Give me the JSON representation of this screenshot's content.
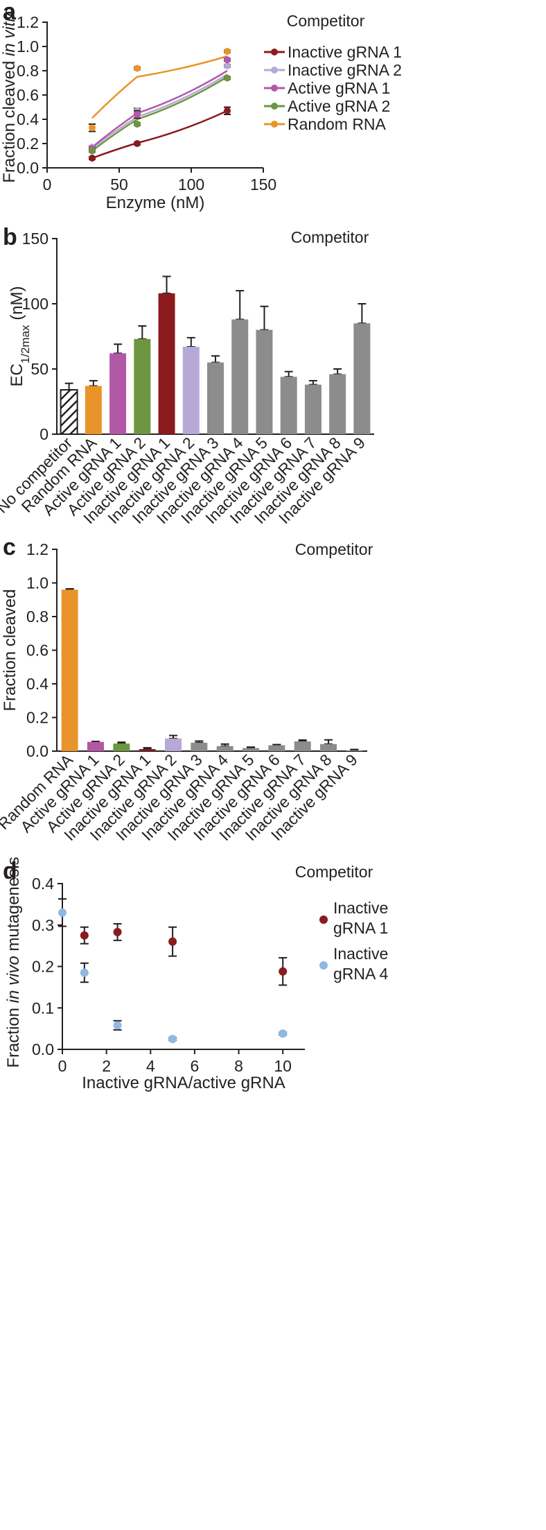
{
  "chart_data": [
    {
      "panel": "a",
      "type": "scatter",
      "title": "Competitor",
      "xlabel": "Enzyme (nM)",
      "ylabel": "Fraction cleaved in vitro",
      "ylabel_plain": "Fraction cleaved ",
      "ylabel_italic": "in vitro",
      "xlim": [
        0,
        150
      ],
      "ylim": [
        0,
        1.2
      ],
      "xticks": [
        "0",
        "50",
        "100",
        "150"
      ],
      "yticks": [
        "0.0",
        "0.2",
        "0.4",
        "0.6",
        "0.8",
        "1.0",
        "1.2"
      ],
      "x": [
        31.25,
        62.5,
        125
      ],
      "series": [
        {
          "name": "Inactive gRNA 1",
          "color": "#8b1a1e",
          "values": [
            0.08,
            0.2,
            0.47
          ],
          "errors": [
            0.01,
            0.01,
            0.03
          ],
          "fit": [
            0.08,
            0.205,
            0.47
          ]
        },
        {
          "name": "Inactive gRNA 2",
          "color": "#b7a9d6",
          "values": [
            0.17,
            0.47,
            0.84
          ],
          "errors": [
            0.01,
            0.02,
            0.01
          ],
          "fit": [
            0.16,
            0.42,
            0.77
          ]
        },
        {
          "name": "Active gRNA 1",
          "color": "#b259a6",
          "values": [
            0.16,
            0.44,
            0.89
          ],
          "errors": [
            0.01,
            0.03,
            0.01
          ],
          "fit": [
            0.17,
            0.45,
            0.8
          ]
        },
        {
          "name": "Active gRNA 2",
          "color": "#6d9640",
          "values": [
            0.14,
            0.36,
            0.74
          ],
          "errors": [
            0.01,
            0.01,
            0.01
          ],
          "fit": [
            0.14,
            0.4,
            0.75
          ]
        },
        {
          "name": "Random RNA",
          "color": "#e8942a",
          "values": [
            0.33,
            0.82,
            0.96
          ],
          "errors": [
            0.03,
            0.01,
            0.01
          ],
          "fit": [
            0.41,
            0.75,
            0.92
          ]
        }
      ]
    },
    {
      "panel": "b",
      "type": "bar",
      "title": "Competitor",
      "xlabel": "",
      "ylabel_main": "EC",
      "ylabel_sub": "1/2max",
      "ylabel_unit": " (nM)",
      "ylim": [
        0,
        150
      ],
      "yticks": [
        "0",
        "50",
        "100",
        "150"
      ],
      "categories": [
        "No competitor",
        "Random RNA",
        "Active gRNA 1",
        "Active gRNA 2",
        "Inactive gRNA 1",
        "Inactive gRNA 2",
        "Inactive gRNA 3",
        "Inactive gRNA 4",
        "Inactive gRNA 5",
        "Inactive gRNA 6",
        "Inactive gRNA 7",
        "Inactive gRNA 8",
        "Inactive gRNA 9"
      ],
      "values": [
        34,
        37,
        62,
        73,
        108,
        67,
        55,
        88,
        80,
        44,
        38,
        46,
        85
      ],
      "errors": [
        5,
        4,
        7,
        10,
        13,
        7,
        5,
        22,
        18,
        4,
        3,
        4,
        15
      ],
      "colors": [
        "hatch",
        "#e8942a",
        "#b259a6",
        "#6d9640",
        "#8b1a1e",
        "#b7a9d6",
        "#8c8c8c",
        "#8c8c8c",
        "#8c8c8c",
        "#8c8c8c",
        "#8c8c8c",
        "#8c8c8c",
        "#8c8c8c"
      ]
    },
    {
      "panel": "c",
      "type": "bar",
      "title": "Competitor",
      "xlabel": "",
      "ylabel": "Fraction cleaved",
      "ylim": [
        0,
        1.2
      ],
      "yticks": [
        "0.0",
        "0.2",
        "0.4",
        "0.6",
        "0.8",
        "1.0",
        "1.2"
      ],
      "categories": [
        "Random RNA",
        "Active gRNA 1",
        "Active gRNA 2",
        "Inactive gRNA 1",
        "Inactive gRNA 2",
        "Inactive gRNA 3",
        "Inactive gRNA 4",
        "Inactive gRNA 5",
        "Inactive gRNA 6",
        "Inactive gRNA 7",
        "Inactive gRNA 8",
        "Inactive gRNA 9"
      ],
      "values": [
        0.96,
        0.055,
        0.045,
        0.012,
        0.075,
        0.05,
        0.03,
        0.018,
        0.035,
        0.058,
        0.042,
        0.005
      ],
      "errors": [
        0.005,
        0.003,
        0.008,
        0.008,
        0.018,
        0.01,
        0.012,
        0.006,
        0.004,
        0.008,
        0.025,
        0.005
      ],
      "colors": [
        "#e8942a",
        "#b259a6",
        "#6d9640",
        "#8b1a1e",
        "#b7a9d6",
        "#8c8c8c",
        "#8c8c8c",
        "#8c8c8c",
        "#8c8c8c",
        "#8c8c8c",
        "#8c8c8c",
        "#8c8c8c"
      ]
    },
    {
      "panel": "d",
      "type": "scatter",
      "title": "Competitor",
      "xlabel": "Inactive gRNA/active gRNA",
      "ylabel": "Fraction in vivo mutagenesis",
      "ylabel_before": "Fraction ",
      "ylabel_italic": "in vivo",
      "ylabel_after": " mutagenesis",
      "xlim": [
        0,
        11
      ],
      "ylim": [
        0,
        0.4
      ],
      "xticks": [
        "0",
        "2",
        "4",
        "6",
        "8",
        "10"
      ],
      "yticks": [
        "0.0",
        "0.1",
        "0.2",
        "0.3",
        "0.4"
      ],
      "series": [
        {
          "name": "Inactive gRNA 1",
          "legend_lines": [
            "Inactive",
            "gRNA 1"
          ],
          "color": "#8b1a1e",
          "x": [
            1,
            2.5,
            5,
            10
          ],
          "values": [
            0.275,
            0.283,
            0.26,
            0.188
          ],
          "errors": [
            0.02,
            0.02,
            0.035,
            0.033
          ]
        },
        {
          "name": "Inactive gRNA 4",
          "legend_lines": [
            "Inactive",
            "gRNA 4"
          ],
          "color": "#8fb8e2",
          "x": [
            0,
            1,
            2.5,
            5,
            10
          ],
          "values": [
            0.33,
            0.185,
            0.058,
            0.025,
            0.038
          ],
          "errors": [
            0.033,
            0.023,
            0.011,
            0.003,
            0.003
          ]
        }
      ]
    }
  ]
}
